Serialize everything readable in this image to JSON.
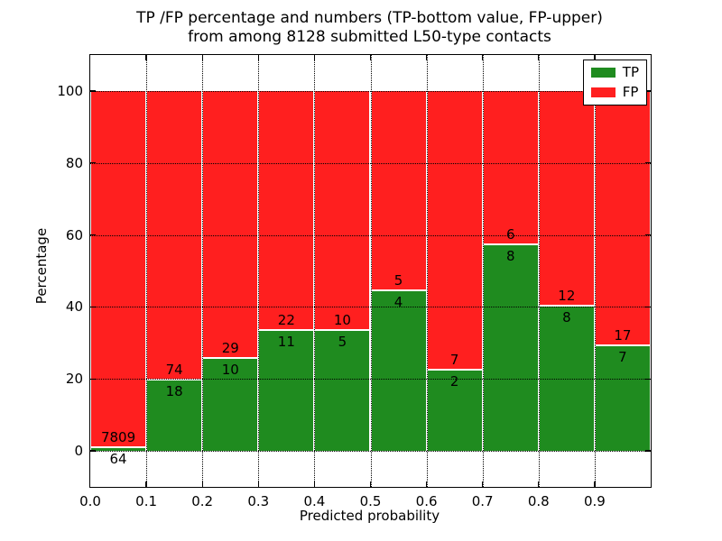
{
  "chart_data": {
    "type": "bar",
    "stacked_percentage": true,
    "title_line1": "TP /FP percentage and numbers (TP-bottom value, FP-upper)",
    "title_line2": "from among 8128 submitted L50-type contacts",
    "total_contacts": 8128,
    "xlabel": "Predicted probability",
    "ylabel": "Percentage",
    "xlim": [
      0.0,
      1.0
    ],
    "ylim": [
      -10,
      110
    ],
    "grid": "dotted",
    "x_tick_labels": [
      "0.0",
      "0.1",
      "0.2",
      "0.3",
      "0.4",
      "0.5",
      "0.6",
      "0.7",
      "0.8",
      "0.9"
    ],
    "y_tick_values": [
      0,
      20,
      40,
      60,
      80,
      100
    ],
    "y_tick_labels": [
      "0",
      "20",
      "40",
      "60",
      "80",
      "100"
    ],
    "legend": {
      "position": "upper right",
      "entries": [
        {
          "label": "TP",
          "color": "#1f8b1f"
        },
        {
          "label": "FP",
          "color": "#ff1f1f"
        }
      ]
    },
    "series": [
      {
        "name": "TP",
        "role": "bottom",
        "color": "#1f8b1f"
      },
      {
        "name": "FP",
        "role": "top",
        "color": "#ff1f1f"
      }
    ],
    "bins": [
      {
        "x_start": 0.0,
        "x_end": 0.1,
        "tp": 64,
        "fp": 7809
      },
      {
        "x_start": 0.1,
        "x_end": 0.2,
        "tp": 18,
        "fp": 74
      },
      {
        "x_start": 0.2,
        "x_end": 0.3,
        "tp": 10,
        "fp": 29
      },
      {
        "x_start": 0.3,
        "x_end": 0.4,
        "tp": 11,
        "fp": 22
      },
      {
        "x_start": 0.4,
        "x_end": 0.5,
        "tp": 5,
        "fp": 10
      },
      {
        "x_start": 0.5,
        "x_end": 0.6,
        "tp": 4,
        "fp": 5
      },
      {
        "x_start": 0.6,
        "x_end": 0.7,
        "tp": 2,
        "fp": 7
      },
      {
        "x_start": 0.7,
        "x_end": 0.8,
        "tp": 8,
        "fp": 6
      },
      {
        "x_start": 0.8,
        "x_end": 0.9,
        "tp": 8,
        "fp": 12
      },
      {
        "x_start": 0.9,
        "x_end": 1.0,
        "tp": 7,
        "fp": 17
      }
    ]
  }
}
